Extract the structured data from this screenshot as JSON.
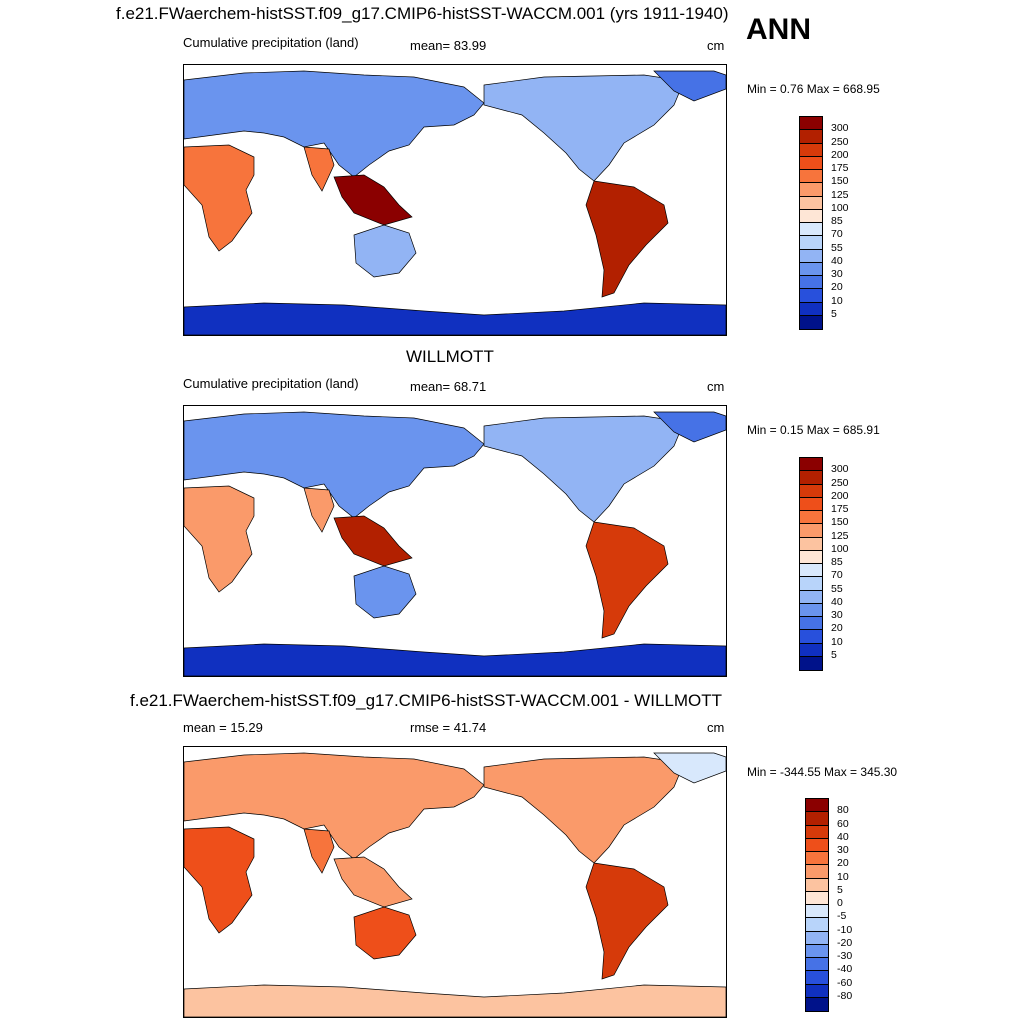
{
  "header": {
    "season": "ANN"
  },
  "panels": [
    {
      "title": "f.e21.FWaerchem-histSST.f09_g17.CMIP6-histSST-WACCM.001 (yrs 1911-1940)",
      "left_label": "Cumulative precipitation (land)",
      "center_label": "mean=  83.99",
      "units": "cm",
      "minmax": "Min =   0.76 Max = 668.95"
    },
    {
      "title": "WILLMOTT",
      "left_label": "Cumulative precipitation (land)",
      "center_label": "mean=  68.71",
      "units": "cm",
      "minmax": "Min =   0.15 Max = 685.91"
    },
    {
      "title": "f.e21.FWaerchem-histSST.f09_g17.CMIP6-histSST-WACCM.001 - WILLMOTT",
      "left_label": "mean =  15.29",
      "center_label": "rmse =  41.74",
      "units": "cm",
      "minmax": "Min = -344.55 Max = 345.30"
    }
  ],
  "colorbars": {
    "precip": {
      "labels": [
        "300",
        "250",
        "200",
        "175",
        "150",
        "125",
        "100",
        "85",
        "70",
        "55",
        "40",
        "30",
        "20",
        "10",
        "5"
      ],
      "colors": [
        "#8b0000",
        "#b22000",
        "#d63a0a",
        "#ee4f1a",
        "#f7743c",
        "#fa9a6a",
        "#fcc3a0",
        "#fee6d6",
        "#d8e8fc",
        "#b8d4fa",
        "#92b4f4",
        "#6a94ee",
        "#4672e6",
        "#2850dc",
        "#1030c0",
        "#00128a"
      ]
    },
    "diff": {
      "labels": [
        "80",
        "60",
        "40",
        "30",
        "20",
        "10",
        "5",
        "0",
        "-5",
        "-10",
        "-20",
        "-30",
        "-40",
        "-60",
        "-80"
      ],
      "colors": [
        "#8b0000",
        "#b22000",
        "#d63a0a",
        "#ee4f1a",
        "#f7743c",
        "#fa9a6a",
        "#fcc3a0",
        "#fee6d6",
        "#d8e8fc",
        "#b8d4fa",
        "#92b4f4",
        "#6a94ee",
        "#4672e6",
        "#2850dc",
        "#1030c0",
        "#00128a"
      ]
    }
  },
  "chart_data": [
    {
      "type": "heatmap",
      "title": "f.e21.FWaerchem-histSST.f09_g17.CMIP6-histSST-WACCM.001 (yrs 1911-1940)",
      "variable": "Cumulative precipitation (land)",
      "units": "cm",
      "mean": 83.99,
      "min": 0.76,
      "max": 668.95,
      "levels": [
        5,
        10,
        20,
        30,
        40,
        55,
        70,
        85,
        100,
        125,
        150,
        175,
        200,
        250,
        300
      ],
      "regions": {
        "africa": 150,
        "south_america": 260,
        "north_america": 40,
        "greenland": 20,
        "europe_asia": 35,
        "india": 150,
        "se_asia": 300,
        "australia": 45,
        "antarctica": 5
      }
    },
    {
      "type": "heatmap",
      "title": "WILLMOTT",
      "variable": "Cumulative precipitation (land)",
      "units": "cm",
      "mean": 68.71,
      "min": 0.15,
      "max": 685.91,
      "levels": [
        5,
        10,
        20,
        30,
        40,
        55,
        70,
        85,
        100,
        125,
        150,
        175,
        200,
        250,
        300
      ],
      "regions": {
        "africa": 125,
        "south_america": 200,
        "north_america": 40,
        "greenland": 20,
        "europe_asia": 30,
        "india": 125,
        "se_asia": 250,
        "australia": 30,
        "antarctica": 5
      }
    },
    {
      "type": "heatmap",
      "title": "f.e21.FWaerchem-histSST.f09_g17.CMIP6-histSST-WACCM.001 - WILLMOTT",
      "units": "cm",
      "mean": 15.29,
      "rmse": 41.74,
      "min": -344.55,
      "max": 345.3,
      "levels": [
        -80,
        -60,
        -40,
        -30,
        -20,
        -10,
        -5,
        0,
        5,
        10,
        20,
        30,
        40,
        60,
        80
      ],
      "regions": {
        "africa": 30,
        "south_america": 40,
        "north_america": 10,
        "greenland": -5,
        "europe_asia": 10,
        "india": 20,
        "se_asia": 10,
        "australia": 30,
        "antarctica": 5
      }
    }
  ]
}
